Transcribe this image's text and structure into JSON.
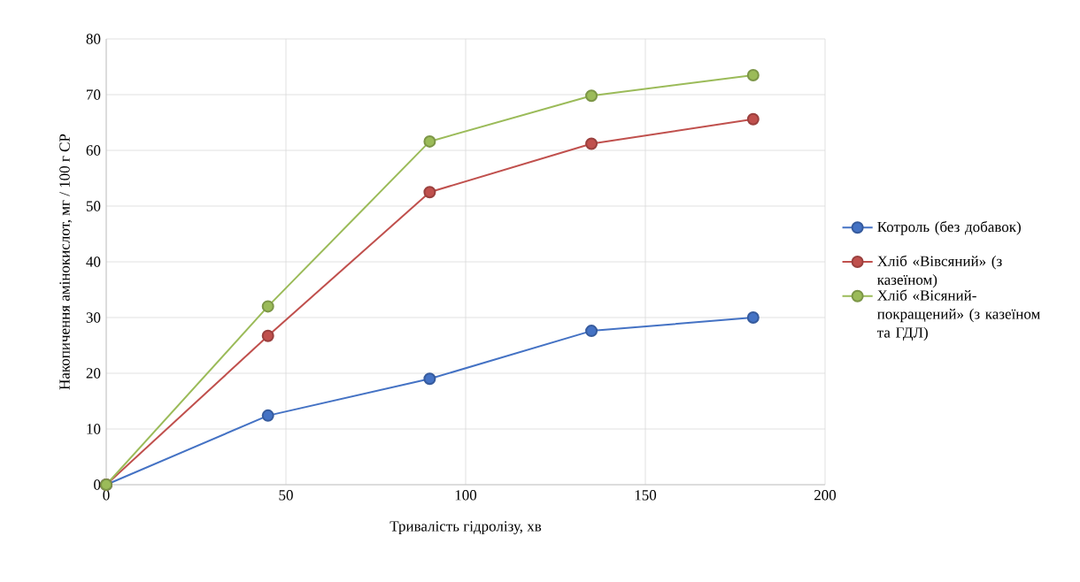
{
  "chart_data": {
    "type": "line",
    "xlabel": "Тривалість гідролізу, хв",
    "ylabel": "Накопичення амінокислот, мг / 100 г СР",
    "x": [
      0,
      45,
      90,
      135,
      180
    ],
    "series": [
      {
        "name": "Котроль (без добавок)",
        "color": "#4472c4",
        "values": [
          0,
          12.4,
          19.0,
          27.6,
          30.0
        ]
      },
      {
        "name": "Хліб «Вівсяний» (з казеїном)",
        "color": "#c0504d",
        "values": [
          0,
          26.7,
          52.5,
          61.2,
          65.6
        ]
      },
      {
        "name": "Хліб «Вісяний-покращений» (з казеїном та ГДЛ)",
        "color": "#9bbb59",
        "values": [
          0,
          32.0,
          61.6,
          69.8,
          73.5
        ]
      }
    ],
    "xlim": [
      0,
      200
    ],
    "xticks": [
      0,
      50,
      100,
      150,
      200
    ],
    "ylim": [
      0,
      80
    ],
    "yticks": [
      0,
      10,
      20,
      30,
      40,
      50,
      60,
      70,
      80
    ],
    "grid": true,
    "legend": "right",
    "marker": "circle",
    "line_style": "solid"
  }
}
